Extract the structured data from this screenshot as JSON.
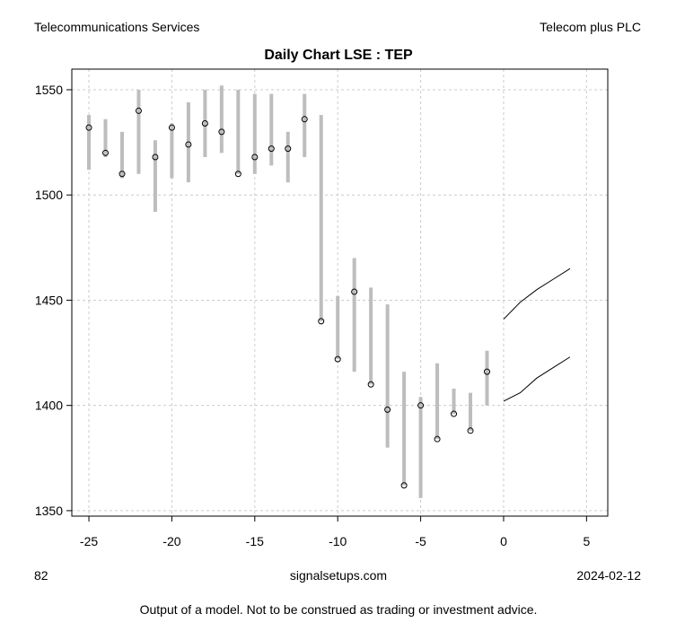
{
  "header": {
    "left": "Telecommunications Services",
    "right": "Telecom plus PLC"
  },
  "footer": {
    "left": "82",
    "center": "signalsetups.com",
    "right": "2024-02-12",
    "disclaimer": "Output of a model.  Not to be construed as trading or investment advice."
  },
  "chart_data": {
    "type": "line",
    "title": "Daily Chart LSE : TEP",
    "xlabel": "",
    "ylabel": "",
    "xlim": [
      -26.03,
      6.28
    ],
    "ylim": [
      1347.4,
      1559.8
    ],
    "xticks": [
      -25,
      -20,
      -15,
      -10,
      -5,
      0,
      5
    ],
    "yticks": [
      1350,
      1400,
      1450,
      1500,
      1550
    ],
    "grid": true,
    "bars": {
      "x": [
        -25,
        -24,
        -23,
        -22,
        -21,
        -20,
        -19,
        -18,
        -17,
        -16,
        -15,
        -14,
        -13,
        -12,
        -11,
        -10,
        -9,
        -8,
        -7,
        -6,
        -5,
        -4,
        -3,
        -2,
        -1
      ],
      "high": [
        1538,
        1536,
        1530,
        1550,
        1526,
        1534,
        1544,
        1550,
        1552,
        1550,
        1548,
        1548,
        1530,
        1548,
        1538,
        1452,
        1470,
        1456,
        1448,
        1416,
        1404,
        1420,
        1408,
        1406,
        1426
      ],
      "low": [
        1512,
        1518,
        1508,
        1510,
        1492,
        1508,
        1506,
        1518,
        1520,
        1510,
        1510,
        1514,
        1506,
        1518,
        1440,
        1422,
        1416,
        1410,
        1380,
        1362,
        1356,
        1384,
        1396,
        1388,
        1400
      ],
      "close": [
        1532,
        1520,
        1510,
        1540,
        1518,
        1532,
        1524,
        1534,
        1530,
        1510,
        1518,
        1522,
        1522,
        1536,
        1440,
        1422,
        1454,
        1410,
        1398,
        1362,
        1400,
        1384,
        1396,
        1388,
        1416
      ]
    },
    "series": [
      {
        "name": "forecast-upper",
        "x": [
          0,
          1,
          2,
          3,
          4
        ],
        "values": [
          1441,
          1449,
          1455,
          1460,
          1465
        ]
      },
      {
        "name": "forecast-lower",
        "x": [
          0,
          1,
          2,
          3,
          4
        ],
        "values": [
          1402,
          1406,
          1413,
          1418,
          1423
        ]
      }
    ]
  }
}
